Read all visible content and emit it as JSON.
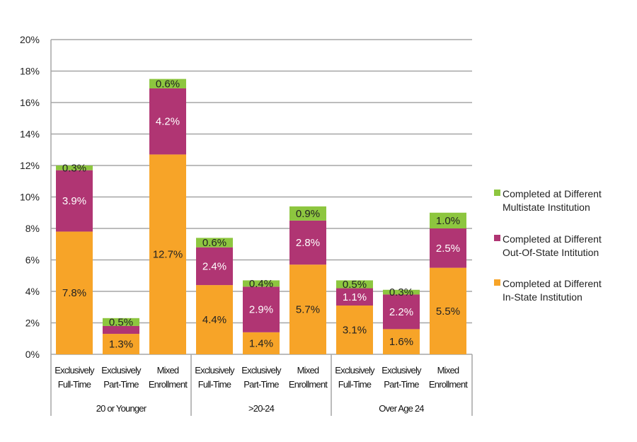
{
  "chart_data": {
    "type": "bar",
    "stacked": true,
    "ylim": [
      0,
      20
    ],
    "yticks": [
      "0%",
      "2%",
      "4%",
      "6%",
      "8%",
      "10%",
      "12%",
      "14%",
      "16%",
      "18%",
      "20%"
    ],
    "grid": true,
    "legend_placement": "right",
    "categories": [
      [
        "Exclusively",
        "Full-Time"
      ],
      [
        "Exclusively",
        "Part-Time"
      ],
      [
        "Mixed",
        "Enrollment"
      ],
      [
        "Exclusively",
        "Full-Time"
      ],
      [
        "Exclusively",
        "Part-Time"
      ],
      [
        "Mixed",
        "Enrollment"
      ],
      [
        "Exclusively",
        "Full-Time"
      ],
      [
        "Exclusively",
        "Part-Time"
      ],
      [
        "Mixed",
        "Enrollment"
      ]
    ],
    "groups": [
      "20 or Younger",
      ">20-24",
      "Over Age 24"
    ],
    "series": [
      {
        "name": "Completed at Different In-State Institution",
        "legend": [
          "Completed at Different",
          "In-State Institution"
        ],
        "color": "#F7A428",
        "label_color": "#222222",
        "values": [
          7.8,
          1.3,
          12.7,
          4.4,
          1.4,
          5.7,
          3.1,
          1.6,
          5.5
        ],
        "labels": [
          "7.8%",
          "1.3%",
          "12.7%",
          "4.4%",
          "1.4%",
          "5.7%",
          "3.1%",
          "1.6%",
          "5.5%"
        ]
      },
      {
        "name": "Completed at Different Out-Of-State Intitution",
        "legend": [
          "Completed at Different",
          "Out-Of-State Intitution"
        ],
        "color": "#B03573",
        "label_color": "#ffffff",
        "values": [
          3.9,
          0.5,
          4.2,
          2.4,
          2.9,
          2.8,
          1.1,
          2.2,
          2.5
        ],
        "labels": [
          "3.9%",
          "",
          "4.2%",
          "2.4%",
          "2.9%",
          "2.8%",
          "1.1%",
          "2.2%",
          "2.5%"
        ]
      },
      {
        "name": "Completed at Different Multistate Institution",
        "legend": [
          "Completed at Different",
          "Multistate Institution"
        ],
        "color": "#8DC63F",
        "label_color": "#222222",
        "values": [
          0.3,
          0.5,
          0.6,
          0.6,
          0.4,
          0.9,
          0.5,
          0.3,
          1.0
        ],
        "labels": [
          "0.3%",
          "0.5%",
          "0.6%",
          "0.6%",
          "0.4%",
          "0.9%",
          "0.5%",
          "0.3%",
          "1.0%"
        ]
      }
    ]
  }
}
